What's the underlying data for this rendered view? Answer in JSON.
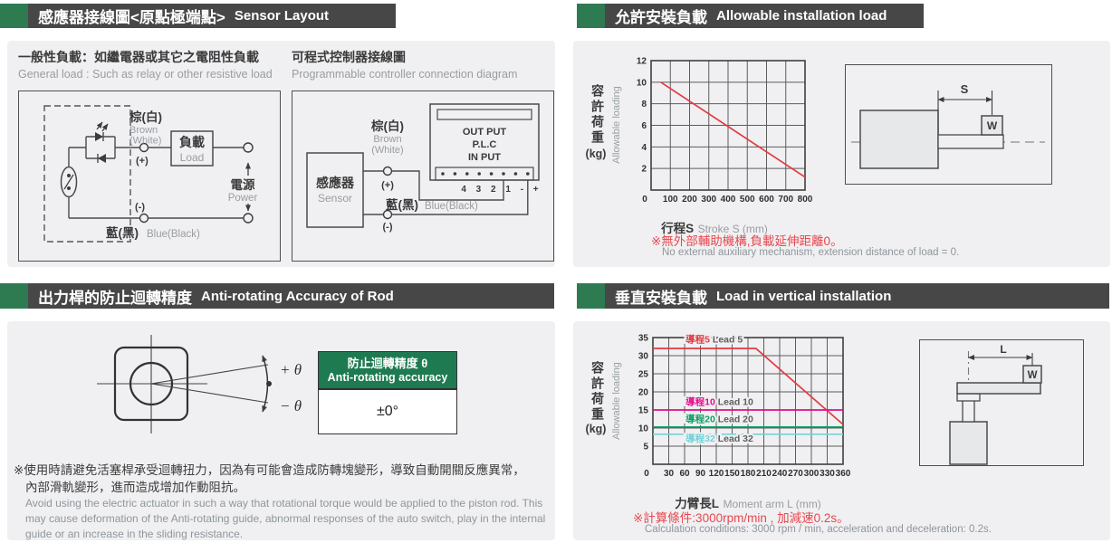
{
  "colors": {
    "accent_green": "#2e7b52",
    "header_bar": "#474747",
    "panel_bg": "#f0f0f2",
    "table_header_green": "#1e7a50",
    "note_red": "#e8474f",
    "line_red": "#e23a40",
    "line_magenta": "#e60a8c",
    "line_green": "#0e9e63",
    "line_cyan": "#74d2d8",
    "text_dark": "#3a3a3a",
    "text_gray": "#989da1"
  },
  "sections": {
    "sensor_layout": {
      "title_zh": "感應器接線圖<原點極端點>",
      "title_en": "Sensor Layout",
      "general_load": {
        "title_zh": "一般性負載：如繼電器或其它之電阻性負載",
        "title_en": "General load : Such as relay or other resistive load",
        "brown_zh": "棕(白)",
        "brown_en1": "Brown",
        "brown_en2": "(White)",
        "plus": "(+)",
        "minus": "(-)",
        "load_zh": "負載",
        "load_en": "Load",
        "power_zh": "電源",
        "power_en": "Power",
        "blue_zh": "藍(黑)",
        "blue_en": "Blue(Black)"
      },
      "plc": {
        "title_zh": "可程式控制器接線圖",
        "title_en": "Programmable controller connection diagram",
        "sensor_zh": "感應器",
        "sensor_en": "Sensor",
        "brown_zh": "棕(白)",
        "brown_en1": "Brown",
        "brown_en2": "(White)",
        "plus": "(+)",
        "minus": "(-)",
        "blue_zh": "藍(黑)",
        "blue_en": "Blue(Black)",
        "plc_out": "OUT PUT",
        "plc_name": "P.L.C",
        "plc_in": "IN PUT",
        "terminals": "4 3 2 1 - +"
      }
    },
    "allowable_load": {
      "title_zh": "允許安裝負載",
      "title_en": "Allowable installation load",
      "note_zh": "※無外部輔助機構,負載延伸距離0。",
      "note_en": "No external auxiliary mechanism, extension distance of load = 0.",
      "dim_label": "S",
      "weight_label": "W"
    },
    "anti_rotating": {
      "title_zh": "出力桿的防止迴轉精度",
      "title_en": "Anti-rotating Accuracy of Rod",
      "plus_theta": "+ θ",
      "minus_theta": "− θ",
      "table": {
        "header_zh": "防止迴轉精度 θ",
        "header_en": "Anti-rotating accuracy",
        "value": "±0°"
      },
      "note_zh1": "※使用時請避免活塞桿承受迴轉扭力，因為有可能會造成防轉塊變形，導致自動開關反應異常，",
      "note_zh2": "內部滑軌變形，進而造成增加作動阻抗。",
      "note_en": "Avoid using the electric actuator in such a way that rotational torque would be applied to the piston rod. This may cause deformation of the Anti-rotating guide, abnormal responses of the auto switch, play in the internal guide or an increase in the sliding resistance."
    },
    "vertical_load": {
      "title_zh": "垂直安裝負載",
      "title_en": "Load in vertical installation",
      "note_zh": "※計算條件:3000rpm/min , 加減速0.2s。",
      "note_en": "Calculation conditions: 3000 rpm / min, acceleration and deceleration: 0.2s.",
      "dim_label": "L",
      "weight_label": "W"
    }
  },
  "chart_data": [
    {
      "type": "line",
      "title": "Allowable installation load",
      "xlabel_zh": "行程S",
      "xlabel_en": "Stroke S (mm)",
      "ylabel_zh": "容許荷重",
      "ylabel_unit": "(kg)",
      "ylabel_en": "Allowable loading",
      "xlim": [
        0,
        800
      ],
      "ylim": [
        0,
        12
      ],
      "xticks": [
        0,
        100,
        200,
        300,
        400,
        500,
        600,
        700,
        800
      ],
      "yticks": [
        0,
        2,
        4,
        6,
        8,
        10,
        12
      ],
      "grid": true,
      "legend_position": "none",
      "series": [
        {
          "name_zh": "",
          "name_en": "allowable loading",
          "color": "#e23a40",
          "points": [
            [
              50,
              10
            ],
            [
              800,
              1.2
            ]
          ]
        }
      ]
    },
    {
      "type": "line",
      "title": "Load in vertical installation",
      "xlabel_zh": "力臂長L",
      "xlabel_en": "Moment arm L (mm)",
      "ylabel_zh": "容許荷重",
      "ylabel_unit": "(kg)",
      "ylabel_en": "Allowable loading",
      "xlim": [
        0,
        360
      ],
      "ylim": [
        0,
        35
      ],
      "xticks": [
        0,
        30,
        60,
        90,
        120,
        150,
        180,
        210,
        240,
        270,
        300,
        330,
        360
      ],
      "yticks": [
        0,
        5,
        10,
        15,
        20,
        25,
        30,
        35
      ],
      "grid": true,
      "legend_position": "inline",
      "series": [
        {
          "name_zh": "導程5",
          "name_en": "Lead 5",
          "color": "#e23a40",
          "points": [
            [
              0,
              32
            ],
            [
              195,
              32
            ],
            [
              360,
              11
            ]
          ],
          "label_pos": [
            62,
            33.6
          ]
        },
        {
          "name_zh": "導程10",
          "name_en": "Lead 10",
          "color": "#e60a8c",
          "points": [
            [
              0,
              15
            ],
            [
              360,
              15
            ]
          ],
          "label_pos": [
            62,
            16.4
          ]
        },
        {
          "name_zh": "導程20",
          "name_en": "Lead 20",
          "color": "#0e9e63",
          "points": [
            [
              0,
              10.3
            ],
            [
              360,
              10.3
            ]
          ],
          "label_pos": [
            62,
            11.6
          ]
        },
        {
          "name_zh": "導程32",
          "name_en": "Lead 32",
          "color": "#74d2d8",
          "points": [
            [
              0,
              8.3
            ],
            [
              360,
              8.3
            ]
          ],
          "label_pos": [
            62,
            6.3
          ]
        }
      ]
    }
  ]
}
